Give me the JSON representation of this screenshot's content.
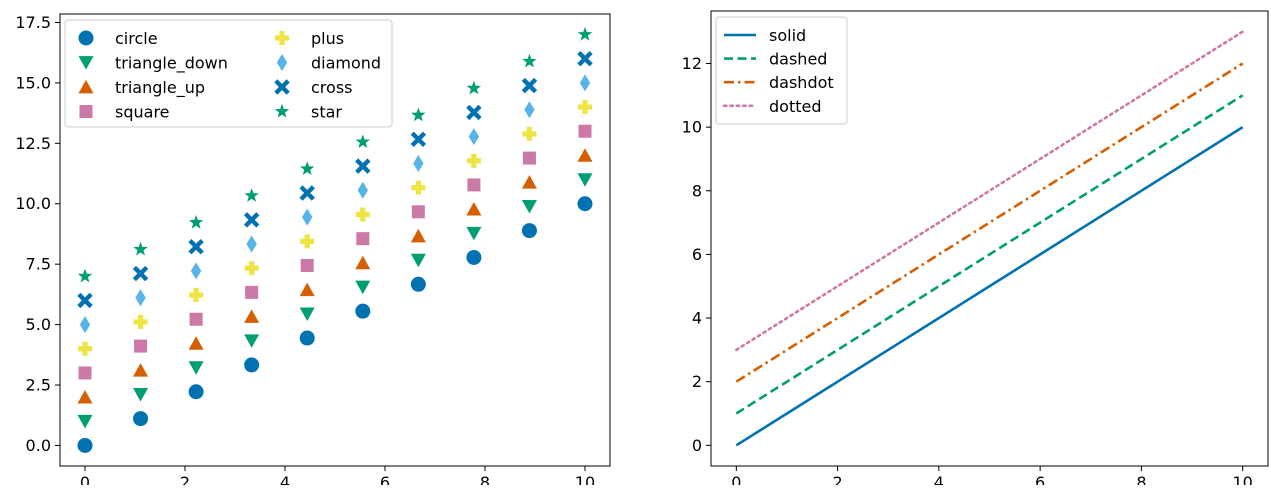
{
  "chart_data": [
    {
      "type": "scatter",
      "title": "",
      "xlabel": "",
      "ylabel": "",
      "xlim": [
        -0.5,
        10.5
      ],
      "ylim": [
        -0.85,
        17.85
      ],
      "xticks": [
        0,
        2,
        4,
        6,
        8,
        10
      ],
      "xtick_labels": [
        "0",
        "2",
        "4",
        "6",
        "8",
        "10"
      ],
      "yticks": [
        0.0,
        2.5,
        5.0,
        7.5,
        10.0,
        12.5,
        15.0,
        17.5
      ],
      "ytick_labels": [
        "0.0",
        "2.5",
        "5.0",
        "7.5",
        "10.0",
        "12.5",
        "15.0",
        "17.5"
      ],
      "grid": false,
      "legend_position": "top-left",
      "legend_columns": 2,
      "x": [
        0,
        1.111,
        2.222,
        3.333,
        4.444,
        5.556,
        6.667,
        7.778,
        8.889,
        10
      ],
      "series": [
        {
          "name": "circle",
          "marker": "circle",
          "color": "#0072B2",
          "offset": 0
        },
        {
          "name": "triangle_down",
          "marker": "triangle_down",
          "color": "#009E73",
          "offset": 1
        },
        {
          "name": "triangle_up",
          "marker": "triangle_up",
          "color": "#D55E00",
          "offset": 2
        },
        {
          "name": "square",
          "marker": "square",
          "color": "#CC79A7",
          "offset": 3
        },
        {
          "name": "plus",
          "marker": "plus",
          "color": "#F0E442",
          "offset": 4
        },
        {
          "name": "diamond",
          "marker": "diamond",
          "color": "#56B4E9",
          "offset": 5
        },
        {
          "name": "cross",
          "marker": "cross",
          "color": "#0072B2",
          "offset": 6
        },
        {
          "name": "star",
          "marker": "star",
          "color": "#009E73",
          "offset": 7
        }
      ]
    },
    {
      "type": "line",
      "title": "",
      "xlabel": "",
      "ylabel": "",
      "xlim": [
        -0.5,
        10.5
      ],
      "ylim": [
        -0.65,
        13.65
      ],
      "xticks": [
        0,
        2,
        4,
        6,
        8,
        10
      ],
      "xtick_labels": [
        "0",
        "2",
        "4",
        "6",
        "8",
        "10"
      ],
      "yticks": [
        0,
        2,
        4,
        6,
        8,
        10,
        12
      ],
      "ytick_labels": [
        "0",
        "2",
        "4",
        "6",
        "8",
        "10",
        "12"
      ],
      "grid": false,
      "legend_position": "top-left",
      "legend_columns": 1,
      "series": [
        {
          "name": "solid",
          "linestyle": "solid",
          "color": "#0072B2",
          "x": [
            0,
            10
          ],
          "y": [
            0,
            10
          ]
        },
        {
          "name": "dashed",
          "linestyle": "dashed",
          "color": "#009E73",
          "x": [
            0,
            10
          ],
          "y": [
            1,
            11
          ]
        },
        {
          "name": "dashdot",
          "linestyle": "dashdot",
          "color": "#D55E00",
          "x": [
            0,
            10
          ],
          "y": [
            2,
            12
          ]
        },
        {
          "name": "dotted",
          "linestyle": "dotted",
          "color": "#CC79A7",
          "x": [
            0,
            10
          ],
          "y": [
            3,
            13
          ]
        }
      ]
    }
  ]
}
